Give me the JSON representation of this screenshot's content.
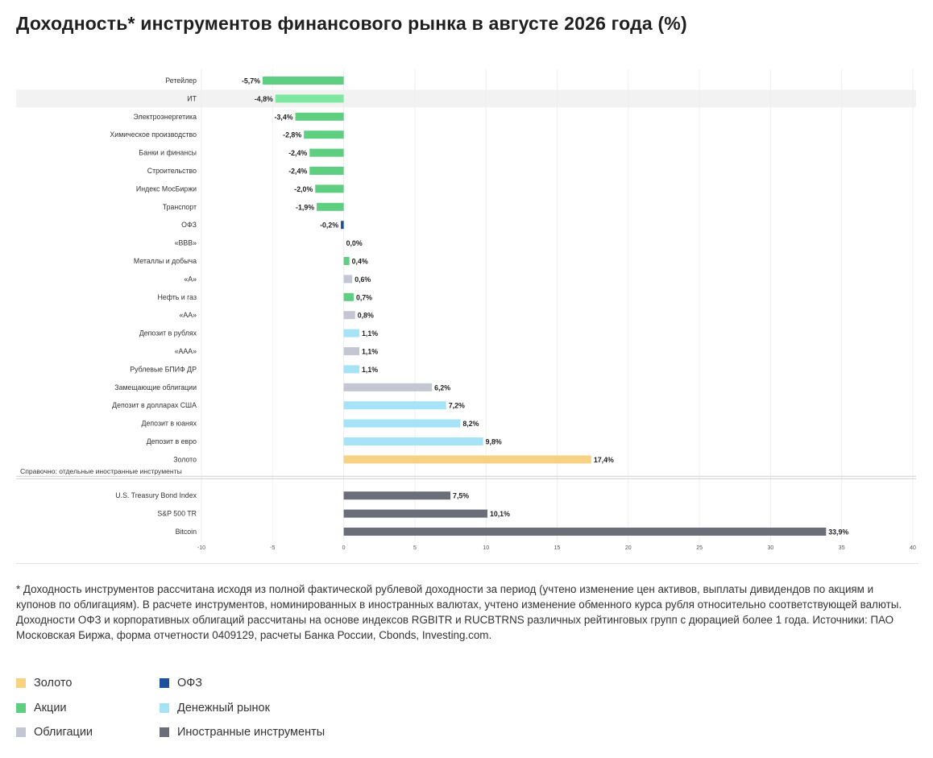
{
  "title": "Доходность* инструментов финансового рынка в августе 2026 года (%)",
  "footnote": "* Доходность инструментов рассчитана исходя из полной фактической рублевой доходности за период (учтено изменение цен активов, выплаты дивидендов по акциям и купонов по облигациям). В расчете инструментов, номинированных в иностранных валютах, учтено изменение обменного курса рубля относительно соответствующей валюты. Доходности ОФЗ и корпоративных облигаций рассчитаны на основе индексов RGBITR и RUCBTRNS различных рейтинговых групп с дюрацией более 1 года. Источники: ПАО Московская Биржа, форма отчетности 0409129, расчеты Банка России, Cbonds, Investing.com.",
  "colors": {
    "Золото": "#f8d283",
    "ОФЗ": "#1c4f9c",
    "Акции": "#5ecf80",
    "Денежный рынок": "#a6e3f7",
    "Облигации": "#c4c6d1",
    "Иностранные инструменты": "#6b6e79",
    "highlight_row": "#f2f2f2",
    "highlight_bar": "#7fe8a0"
  },
  "legend": [
    {
      "label": "Золото",
      "category": "Золото"
    },
    {
      "label": "ОФЗ",
      "category": "ОФЗ"
    },
    {
      "label": "Акции",
      "category": "Акции"
    },
    {
      "label": "Денежный рынок",
      "category": "Денежный рынок"
    },
    {
      "label": "Облигации",
      "category": "Облигации"
    },
    {
      "label": "Иностранные инструменты",
      "category": "Иностранные инструменты"
    }
  ],
  "chart_data": {
    "type": "bar",
    "orientation": "horizontal",
    "xlim": [
      -10,
      40
    ],
    "x_ticks": [
      -10,
      -5,
      0,
      5,
      10,
      15,
      20,
      25,
      30,
      35,
      40
    ],
    "grid": true,
    "section_label": "Справочно: отдельные иностранные инструменты",
    "highlighted_category": "ИТ",
    "rows": [
      {
        "label": "Ретейлер",
        "value": -5.7,
        "value_label": "-5,7%",
        "category": "Акции"
      },
      {
        "label": "ИТ",
        "value": -4.8,
        "value_label": "-4,8%",
        "category": "Акции"
      },
      {
        "label": "Электроэнергетика",
        "value": -3.4,
        "value_label": "-3,4%",
        "category": "Акции"
      },
      {
        "label": "Химическое производство",
        "value": -2.8,
        "value_label": "-2,8%",
        "category": "Акции"
      },
      {
        "label": "Банки и финансы",
        "value": -2.4,
        "value_label": "-2,4%",
        "category": "Акции"
      },
      {
        "label": "Строительство",
        "value": -2.4,
        "value_label": "-2,4%",
        "category": "Акции"
      },
      {
        "label": "Индекс МосБиржи",
        "value": -2.0,
        "value_label": "-2,0%",
        "category": "Акции"
      },
      {
        "label": "Транспорт",
        "value": -1.9,
        "value_label": "-1,9%",
        "category": "Акции"
      },
      {
        "label": "ОФЗ",
        "value": -0.2,
        "value_label": "-0,2%",
        "category": "ОФЗ"
      },
      {
        "label": "«BBB»",
        "value": 0.0,
        "value_label": "0,0%",
        "category": "Облигации"
      },
      {
        "label": "Металлы и добыча",
        "value": 0.4,
        "value_label": "0,4%",
        "category": "Акции"
      },
      {
        "label": "«A»",
        "value": 0.6,
        "value_label": "0,6%",
        "category": "Облигации"
      },
      {
        "label": "Нефть и газ",
        "value": 0.7,
        "value_label": "0,7%",
        "category": "Акции"
      },
      {
        "label": "«AA»",
        "value": 0.8,
        "value_label": "0,8%",
        "category": "Облигации"
      },
      {
        "label": "Депозит в рублях",
        "value": 1.1,
        "value_label": "1,1%",
        "category": "Денежный рынок"
      },
      {
        "label": "«AAA»",
        "value": 1.1,
        "value_label": "1,1%",
        "category": "Облигации"
      },
      {
        "label": "Рублевые БПИФ ДР",
        "value": 1.1,
        "value_label": "1,1%",
        "category": "Денежный рынок"
      },
      {
        "label": "Замещающие облигации",
        "value": 6.2,
        "value_label": "6,2%",
        "category": "Облигации"
      },
      {
        "label": "Депозит в долларах США",
        "value": 7.2,
        "value_label": "7,2%",
        "category": "Денежный рынок"
      },
      {
        "label": "Депозит в юанях",
        "value": 8.2,
        "value_label": "8,2%",
        "category": "Денежный рынок"
      },
      {
        "label": "Депозит в евро",
        "value": 9.8,
        "value_label": "9,8%",
        "category": "Денежный рынок"
      },
      {
        "label": "Золото",
        "value": 17.4,
        "value_label": "17,4%",
        "category": "Золото"
      },
      {
        "label": "U.S. Treasury Bond Index",
        "value": 7.5,
        "value_label": "7,5%",
        "category": "Иностранные инструменты",
        "section": "foreign"
      },
      {
        "label": "S&P 500 TR",
        "value": 10.1,
        "value_label": "10,1%",
        "category": "Иностранные инструменты",
        "section": "foreign"
      },
      {
        "label": "Bitcoin",
        "value": 33.9,
        "value_label": "33,9%",
        "category": "Иностранные инструменты",
        "section": "foreign"
      }
    ]
  }
}
